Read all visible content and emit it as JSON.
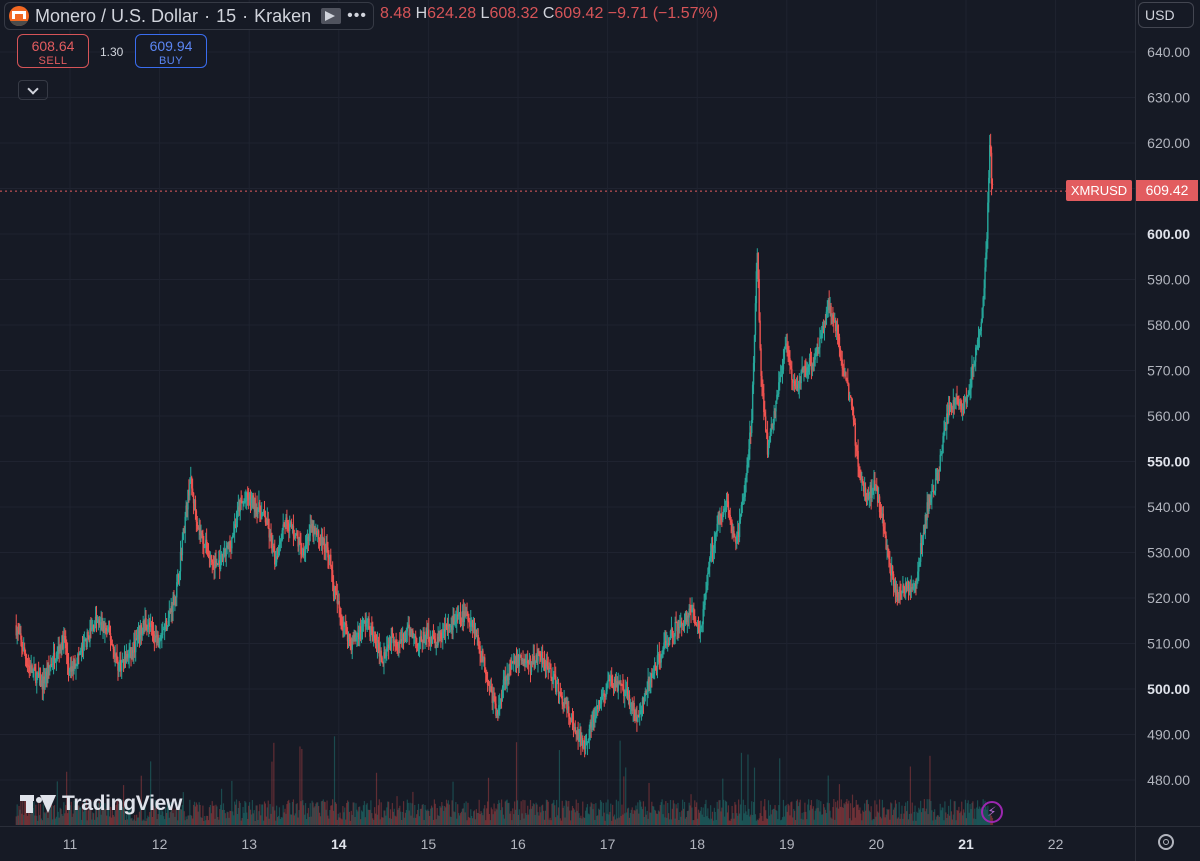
{
  "header": {
    "symbol": "Monero / U.S. Dollar",
    "interval": "15",
    "exchange": "Kraken",
    "more_label": "•••",
    "ohlc": {
      "o_partial": "8.48",
      "h_label": "H",
      "h": "624.28",
      "l_label": "L",
      "l": "608.32",
      "c_label": "C",
      "c": "609.42",
      "change": "−9.71 (−1.57%)"
    }
  },
  "trade": {
    "sell_price": "608.64",
    "sell_label": "SELL",
    "spread": "1.30",
    "buy_price": "609.94",
    "buy_label": "BUY"
  },
  "currency": "USD",
  "last_price_tag": {
    "symbol": "XMRUSD",
    "price": "609.42"
  },
  "watermark": "TradingView",
  "colors": {
    "background": "#161a25",
    "up": "#26a69a",
    "down": "#ef5350",
    "last_price": "#e25c5f",
    "grid": "#1f2330"
  },
  "icons": {
    "logo": "monero-logo-icon",
    "flag": "flag-icon",
    "collapse": "chevron-down-icon",
    "bolt": "lightning-icon",
    "settings": "settings-icon"
  },
  "chart_data": {
    "type": "candlestick",
    "title": "Monero / U.S. Dollar · 15 · Kraken",
    "x_ticks": [
      "11",
      "12",
      "13",
      "14",
      "15",
      "16",
      "17",
      "18",
      "19",
      "20",
      "21",
      "22"
    ],
    "x_ticks_bold": [
      "14",
      "21"
    ],
    "y_ticks": [
      "640.00",
      "630.00",
      "620.00",
      "610.00",
      "600.00",
      "590.00",
      "580.00",
      "570.00",
      "560.00",
      "550.00",
      "540.00",
      "530.00",
      "520.00",
      "510.00",
      "500.00",
      "490.00",
      "480.00"
    ],
    "y_ticks_bold": [
      "600.00",
      "550.00",
      "500.00"
    ],
    "ylim": [
      472,
      642
    ],
    "xlim": [
      10.38,
      22.6
    ],
    "last_price": 609.42,
    "price_path": [
      [
        10.4,
        514
      ],
      [
        10.55,
        505
      ],
      [
        10.7,
        501
      ],
      [
        10.85,
        508
      ],
      [
        10.95,
        511
      ],
      [
        11.0,
        503
      ],
      [
        11.15,
        509
      ],
      [
        11.3,
        515
      ],
      [
        11.45,
        512
      ],
      [
        11.55,
        505
      ],
      [
        11.7,
        508
      ],
      [
        11.85,
        515
      ],
      [
        11.98,
        511
      ],
      [
        12.1,
        515
      ],
      [
        12.2,
        522
      ],
      [
        12.28,
        535
      ],
      [
        12.35,
        546
      ],
      [
        12.45,
        535
      ],
      [
        12.55,
        530
      ],
      [
        12.62,
        527
      ],
      [
        12.7,
        528
      ],
      [
        12.8,
        532
      ],
      [
        12.9,
        540
      ],
      [
        13.0,
        542
      ],
      [
        13.1,
        540
      ],
      [
        13.2,
        537
      ],
      [
        13.3,
        528
      ],
      [
        13.4,
        537
      ],
      [
        13.5,
        535
      ],
      [
        13.6,
        530
      ],
      [
        13.7,
        535
      ],
      [
        13.8,
        533
      ],
      [
        13.9,
        530
      ],
      [
        13.95,
        522
      ],
      [
        14.05,
        515
      ],
      [
        14.15,
        510
      ],
      [
        14.25,
        513
      ],
      [
        14.32,
        515
      ],
      [
        14.4,
        511
      ],
      [
        14.5,
        507
      ],
      [
        14.6,
        512
      ],
      [
        14.7,
        510
      ],
      [
        14.8,
        513
      ],
      [
        14.9,
        510
      ],
      [
        15.0,
        512
      ],
      [
        15.1,
        510
      ],
      [
        15.2,
        513
      ],
      [
        15.3,
        515
      ],
      [
        15.4,
        516
      ],
      [
        15.5,
        515
      ],
      [
        15.6,
        508
      ],
      [
        15.7,
        500
      ],
      [
        15.78,
        494
      ],
      [
        15.85,
        502
      ],
      [
        15.95,
        505
      ],
      [
        16.05,
        507
      ],
      [
        16.15,
        505
      ],
      [
        16.25,
        508
      ],
      [
        16.35,
        505
      ],
      [
        16.45,
        500
      ],
      [
        16.55,
        496
      ],
      [
        16.65,
        490
      ],
      [
        16.75,
        488
      ],
      [
        16.85,
        493
      ],
      [
        16.95,
        498
      ],
      [
        17.05,
        502
      ],
      [
        17.15,
        500
      ],
      [
        17.25,
        498
      ],
      [
        17.35,
        493
      ],
      [
        17.45,
        500
      ],
      [
        17.55,
        505
      ],
      [
        17.65,
        510
      ],
      [
        17.75,
        513
      ],
      [
        17.85,
        515
      ],
      [
        17.95,
        517
      ],
      [
        18.05,
        513
      ],
      [
        18.15,
        528
      ],
      [
        18.25,
        538
      ],
      [
        18.35,
        540
      ],
      [
        18.45,
        532
      ],
      [
        18.55,
        545
      ],
      [
        18.62,
        560
      ],
      [
        18.68,
        598
      ],
      [
        18.72,
        570
      ],
      [
        18.8,
        552
      ],
      [
        18.9,
        565
      ],
      [
        19.0,
        575
      ],
      [
        19.1,
        565
      ],
      [
        19.2,
        570
      ],
      [
        19.3,
        572
      ],
      [
        19.4,
        578
      ],
      [
        19.48,
        585
      ],
      [
        19.55,
        580
      ],
      [
        19.65,
        570
      ],
      [
        19.75,
        560
      ],
      [
        19.8,
        550
      ],
      [
        19.9,
        542
      ],
      [
        20.0,
        545
      ],
      [
        20.1,
        535
      ],
      [
        20.15,
        528
      ],
      [
        20.25,
        520
      ],
      [
        20.35,
        523
      ],
      [
        20.45,
        522
      ],
      [
        20.5,
        530
      ],
      [
        20.58,
        540
      ],
      [
        20.65,
        543
      ],
      [
        20.72,
        550
      ],
      [
        20.8,
        560
      ],
      [
        20.88,
        564
      ],
      [
        20.95,
        562
      ],
      [
        21.02,
        563
      ],
      [
        21.1,
        572
      ],
      [
        21.17,
        578
      ],
      [
        21.22,
        590
      ],
      [
        21.25,
        603
      ],
      [
        21.28,
        622
      ],
      [
        21.3,
        609.42
      ]
    ],
    "volume_note": "volume histogram at bottom"
  }
}
